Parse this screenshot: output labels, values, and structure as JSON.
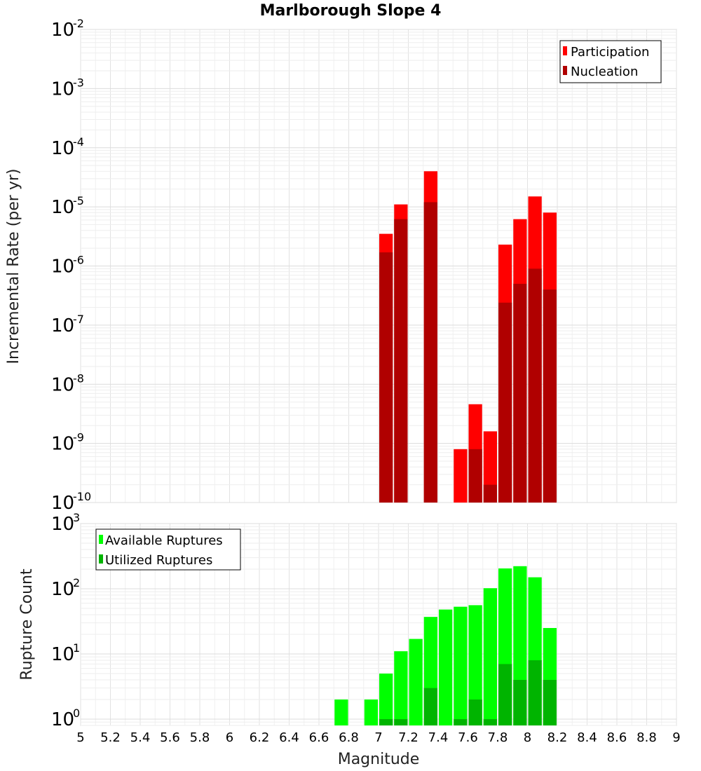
{
  "chart_data": [
    {
      "type": "bar",
      "title": "Marlborough Slope 4",
      "xlabel": "",
      "ylabel": "Incremental Rate (per yr)",
      "yscale": "log",
      "ylim": [
        1e-10,
        0.01
      ],
      "xlim": [
        5,
        9
      ],
      "grid": true,
      "legend_position": "top-right",
      "bar_width": 0.1,
      "y_ticks": [
        {
          "base": "10",
          "exp": "-2"
        },
        {
          "base": "10",
          "exp": "-3"
        },
        {
          "base": "10",
          "exp": "-4"
        },
        {
          "base": "10",
          "exp": "-5"
        },
        {
          "base": "10",
          "exp": "-6"
        },
        {
          "base": "10",
          "exp": "-7"
        },
        {
          "base": "10",
          "exp": "-8"
        },
        {
          "base": "10",
          "exp": "-9"
        },
        {
          "base": "10",
          "exp": "-10"
        }
      ],
      "series": [
        {
          "name": "Participation",
          "color": "#ff0000",
          "x": [
            7.05,
            7.15,
            7.35,
            7.55,
            7.65,
            7.75,
            7.85,
            7.95,
            8.05,
            8.15
          ],
          "values": [
            3.5e-06,
            1.1e-05,
            4e-05,
            8e-10,
            4.6e-09,
            1.6e-09,
            2.3e-06,
            6.2e-06,
            1.5e-05,
            8e-06
          ]
        },
        {
          "name": "Nucleation",
          "color": "#b00000",
          "x": [
            7.05,
            7.15,
            7.35,
            7.65,
            7.75,
            7.85,
            7.95,
            8.05,
            8.15
          ],
          "values": [
            1.7e-06,
            6.2e-06,
            1.2e-05,
            8e-10,
            2e-10,
            2.4e-07,
            5e-07,
            9e-07,
            4e-07
          ]
        }
      ]
    },
    {
      "type": "bar",
      "title": "",
      "xlabel": "Magnitude",
      "ylabel": "Rupture Count",
      "yscale": "log",
      "ylim": [
        0.8,
        1000
      ],
      "xlim": [
        5,
        9
      ],
      "grid": true,
      "legend_position": "top-left",
      "bar_width": 0.1,
      "x_ticks": [
        "5",
        "5.2",
        "5.4",
        "5.6",
        "5.8",
        "6",
        "6.2",
        "6.4",
        "6.6",
        "6.8",
        "7",
        "7.2",
        "7.4",
        "7.6",
        "7.8",
        "8",
        "8.2",
        "8.4",
        "8.6",
        "8.8",
        "9"
      ],
      "y_ticks": [
        {
          "base": "10",
          "exp": "3"
        },
        {
          "base": "10",
          "exp": "2"
        },
        {
          "base": "10",
          "exp": "1"
        },
        {
          "base": "10",
          "exp": "0"
        }
      ],
      "series": [
        {
          "name": "Available Ruptures",
          "color": "#00ff00",
          "x": [
            6.75,
            6.95,
            7.05,
            7.15,
            7.25,
            7.35,
            7.45,
            7.55,
            7.65,
            7.75,
            7.85,
            7.95,
            8.05,
            8.15
          ],
          "values": [
            2,
            2,
            5,
            11,
            17,
            37,
            48,
            53,
            56,
            102,
            205,
            222,
            150,
            25
          ]
        },
        {
          "name": "Utilized Ruptures",
          "color": "#00b400",
          "x": [
            7.05,
            7.15,
            7.35,
            7.55,
            7.65,
            7.75,
            7.85,
            7.95,
            8.05,
            8.15
          ],
          "values": [
            1,
            1,
            3,
            1,
            2,
            1,
            7,
            4,
            8,
            4
          ]
        }
      ]
    }
  ]
}
